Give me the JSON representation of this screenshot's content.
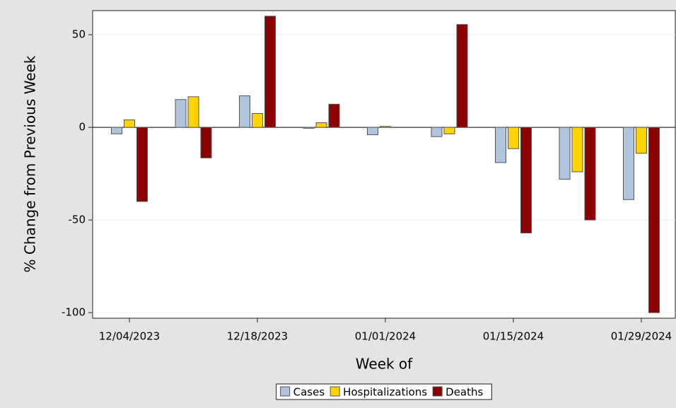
{
  "chart_data": {
    "type": "bar",
    "y_label": "% Change from Previous Week",
    "x_label": "Week of",
    "categories": [
      "12/04/2023",
      null,
      "12/18/2023",
      null,
      "01/01/2024",
      null,
      "01/15/2024",
      null,
      "01/29/2024"
    ],
    "series": [
      {
        "name": "Cases",
        "color": "#b0c4de",
        "values": [
          -3.5,
          15,
          17,
          -0.5,
          -4,
          -5,
          -19,
          -28,
          -39
        ]
      },
      {
        "name": "Hospitalizations",
        "color": "#ffd400",
        "values": [
          4,
          16.5,
          7.5,
          2.5,
          0.5,
          -3.5,
          -11.5,
          -24,
          -14
        ]
      },
      {
        "name": "Deaths",
        "color": "#8b0000",
        "values": [
          -40,
          -16.5,
          60,
          12.5,
          0,
          55.5,
          -57,
          -50,
          -100
        ]
      }
    ],
    "ylim": [
      -103,
      63
    ],
    "yticks": [
      50,
      0,
      -50,
      -100
    ],
    "grid": true,
    "legend": "bottom"
  }
}
